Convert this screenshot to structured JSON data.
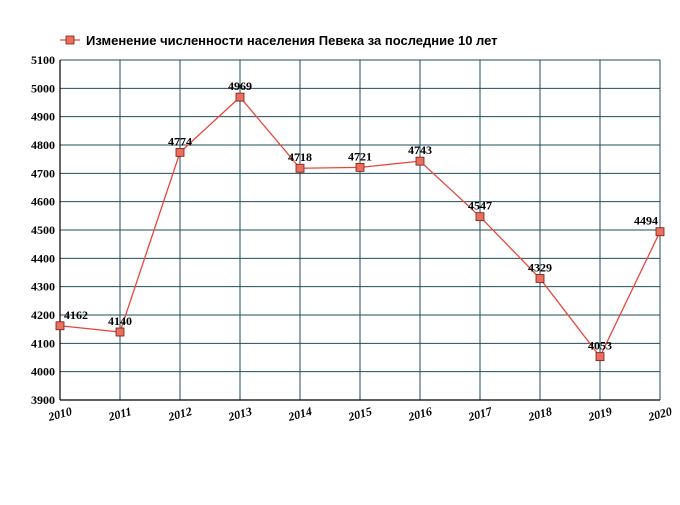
{
  "chart_data": {
    "type": "line",
    "title": "",
    "xlabel": "",
    "ylabel": "",
    "x": [
      2010,
      2011,
      2012,
      2013,
      2014,
      2015,
      2016,
      2017,
      2018,
      2019,
      2020
    ],
    "series": [
      {
        "name": "Изменение численности населения Певека за последние 10 лет",
        "values": [
          4162,
          4140,
          4774,
          4969,
          4718,
          4721,
          4743,
          4547,
          4329,
          4053,
          4494
        ]
      }
    ],
    "ylim": [
      3900,
      5100
    ],
    "yticks": [
      3900,
      4000,
      4100,
      4200,
      4300,
      4400,
      4500,
      4600,
      4700,
      4800,
      4900,
      5000,
      5100
    ],
    "grid": true,
    "legend_position": "top-left",
    "colors": {
      "line": "#e8483c",
      "marker_fill": "#e87060",
      "marker_stroke": "#7a1a10",
      "grid": "#1f4e5a",
      "axis": "#000000"
    }
  }
}
